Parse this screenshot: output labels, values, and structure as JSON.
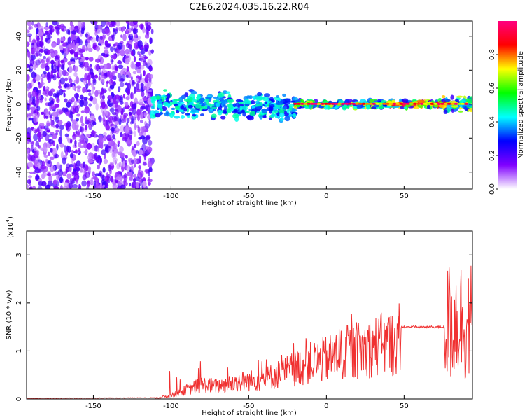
{
  "title": "C2E6.2024.035.16.22.R04",
  "colors": {
    "background": "#ffffff",
    "axis": "#000000",
    "snr_line": "#f03030",
    "spectrogram_scatter": "#7a20e0"
  },
  "chart_data": [
    {
      "type": "heatmap",
      "name": "spectrogram",
      "xlabel": "Height of straight line (km)",
      "ylabel": "Frequency (Hz)",
      "xlim": [
        -193,
        94
      ],
      "ylim": [
        -50,
        49
      ],
      "x_ticks": [
        -150,
        -100,
        -50,
        0,
        50
      ],
      "y_ticks": [
        -40,
        -20,
        0,
        20,
        40
      ],
      "x_tick_labels": [
        "-150",
        "-100",
        "-50",
        "0",
        "50"
      ],
      "y_tick_labels": [
        "-40",
        "-20",
        "0",
        "20",
        "40"
      ],
      "noise_region_x": [
        -193,
        -112
      ],
      "signal_band_center_hz": 0,
      "colorbar": {
        "label": "Normalized spectral amplitude",
        "range": [
          0,
          1
        ],
        "ticks": [
          0.0,
          0.2,
          0.4,
          0.6,
          0.8
        ],
        "tick_labels": [
          "0.0",
          "0.2",
          "0.4",
          "0.6",
          "0.8"
        ],
        "stops": [
          "#ffffff",
          "#8000ff",
          "#0000ff",
          "#00ffff",
          "#00ff00",
          "#ffff00",
          "#ff0000",
          "#ff0080"
        ]
      }
    },
    {
      "type": "line",
      "name": "snr",
      "xlabel": "Height of straight line (km)",
      "ylabel": "SNR (10 * v/v)",
      "scale_label": "(x10",
      "scale_exponent": "4",
      "scale_close": ")",
      "xlim": [
        -193,
        94
      ],
      "ylim": [
        0,
        3.5
      ],
      "x_ticks": [
        -150,
        -100,
        -50,
        0,
        50
      ],
      "y_ticks": [
        0,
        1,
        2,
        3
      ],
      "x_tick_labels": [
        "-150",
        "-100",
        "-50",
        "0",
        "50"
      ],
      "y_tick_labels": [
        "0",
        "1",
        "2",
        "3"
      ],
      "envelope": {
        "x": [
          -193,
          -110,
          -100,
          -90,
          -80,
          -70,
          -60,
          -50,
          -40,
          -30,
          -20,
          -10,
          0,
          10,
          20,
          30,
          40,
          50,
          60,
          70,
          76,
          80,
          85,
          90,
          94
        ],
        "y": [
          0.01,
          0.02,
          0.1,
          0.25,
          0.4,
          0.35,
          0.45,
          0.5,
          0.55,
          0.7,
          0.85,
          1.0,
          1.1,
          1.25,
          1.35,
          1.45,
          1.55,
          1.5,
          1.5,
          1.5,
          1.5,
          1.6,
          1.7,
          1.6,
          1.6
        ]
      }
    }
  ]
}
